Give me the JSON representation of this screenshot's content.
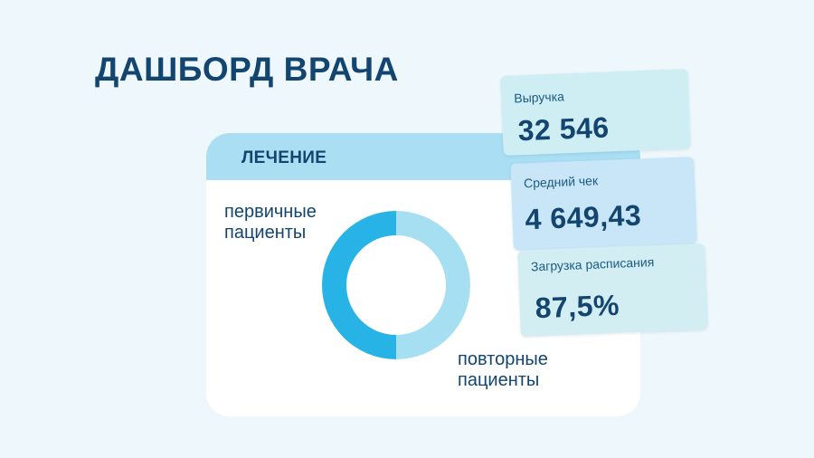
{
  "header": {
    "title": "ДАШБОРД ВРАЧА"
  },
  "treatment_panel": {
    "title": "ЛЕЧЕНИЕ",
    "primary_label_line1": "первичные",
    "primary_label_line2": "пациенты",
    "repeat_label_line1": "повторные",
    "repeat_label_line2": "пациенты"
  },
  "kpis": {
    "revenue": {
      "label": "Выручка",
      "value": "32 546"
    },
    "average_check": {
      "label": "Средний чек",
      "value": "4 649,43"
    },
    "schedule_load": {
      "label": "Загрузка расписания",
      "value": "87,5%"
    }
  },
  "chart_data": {
    "type": "pie",
    "style": "donut",
    "categories": [
      "первичные пациенты",
      "повторные пациенты"
    ],
    "values": [
      50,
      50
    ],
    "colors": [
      "#27b3e6",
      "#a6dff2"
    ]
  }
}
